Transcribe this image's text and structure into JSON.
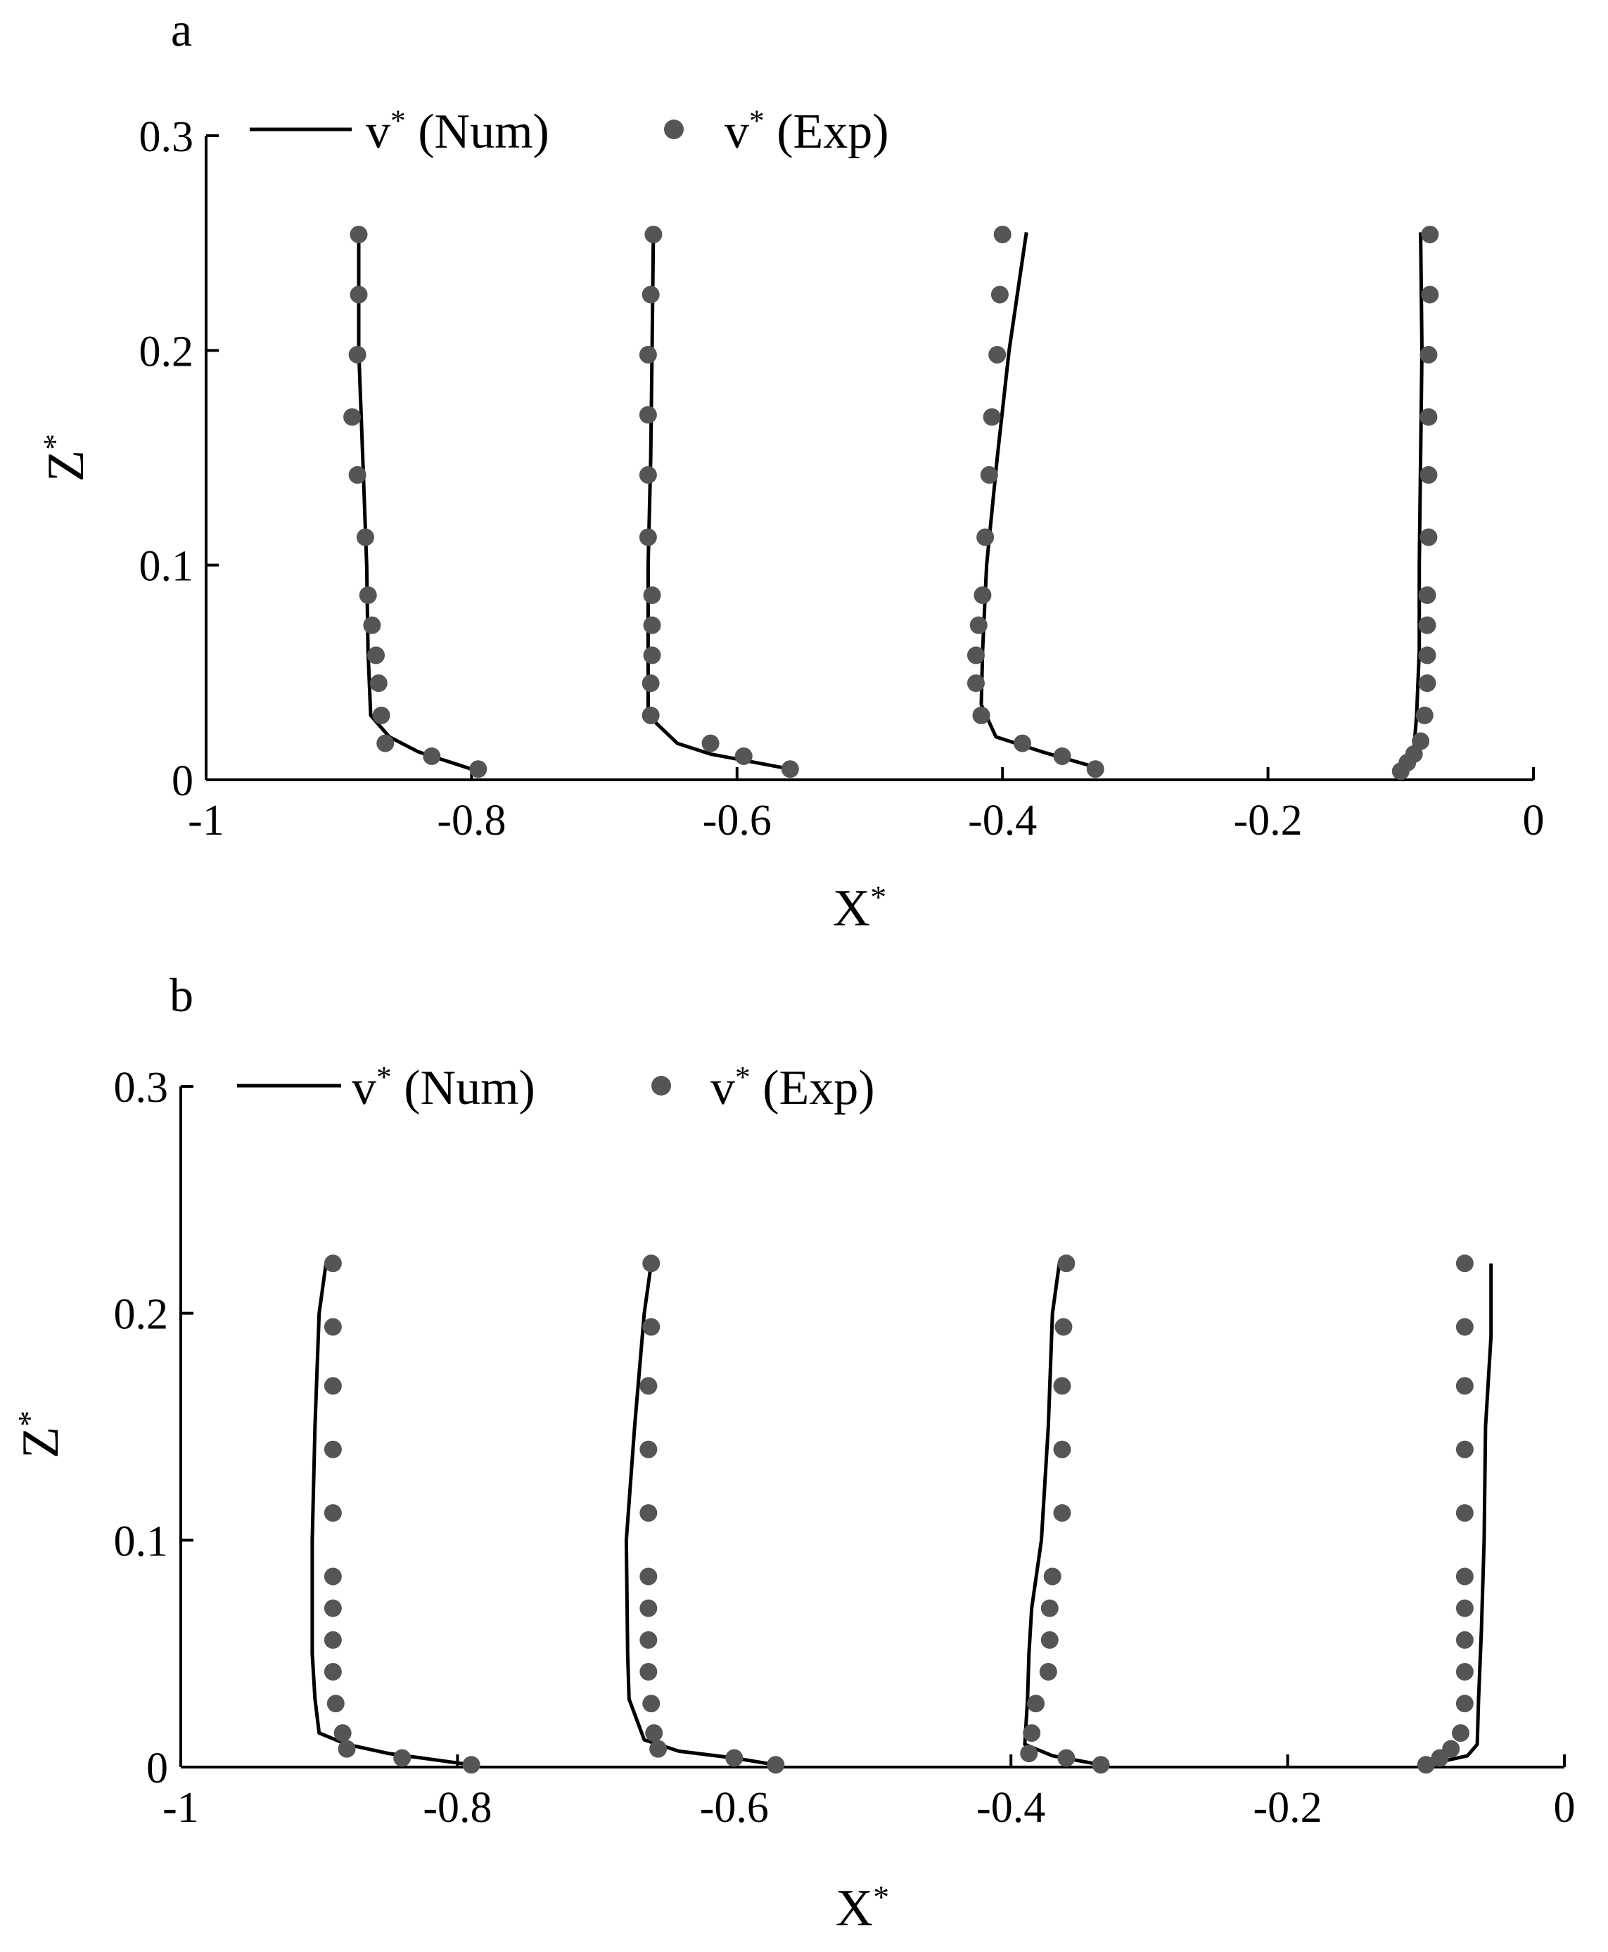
{
  "chart_data": [
    {
      "panel": "a",
      "type": "line",
      "xlabel": "X",
      "xlabel_sup": "*",
      "ylabel": "Z",
      "ylabel_sup": "*",
      "xlim": [
        -1,
        0
      ],
      "ylim": [
        0,
        0.3
      ],
      "xticks": [
        "-1",
        "-0.8",
        "-0.6",
        "-0.4",
        "-0.2",
        "0"
      ],
      "yticks": [
        "0",
        "0.1",
        "0.2",
        "0.3"
      ],
      "grid": false,
      "legend_position": "top",
      "legend": [
        {
          "label": "v",
          "sup": "*",
          "suffix": " (Num)",
          "style": "line"
        },
        {
          "label": "v",
          "sup": "*",
          "suffix": " (Exp)",
          "style": "marker"
        }
      ],
      "series": [
        {
          "name": "v* (Num)",
          "style": "line",
          "profiles": [
            [
              [
                -0.885,
                0.255
              ],
              [
                -0.885,
                0.2
              ],
              [
                -0.882,
                0.15
              ],
              [
                -0.879,
                0.1
              ],
              [
                -0.878,
                0.06
              ],
              [
                -0.876,
                0.03
              ],
              [
                -0.862,
                0.02
              ],
              [
                -0.84,
                0.013
              ],
              [
                -0.8,
                0.005
              ]
            ],
            [
              [
                -0.663,
                0.255
              ],
              [
                -0.664,
                0.2
              ],
              [
                -0.665,
                0.15
              ],
              [
                -0.667,
                0.1
              ],
              [
                -0.667,
                0.06
              ],
              [
                -0.667,
                0.03
              ],
              [
                -0.645,
                0.017
              ],
              [
                -0.62,
                0.012
              ],
              [
                -0.56,
                0.005
              ]
            ],
            [
              [
                -0.382,
                0.255
              ],
              [
                -0.395,
                0.2
              ],
              [
                -0.404,
                0.15
              ],
              [
                -0.412,
                0.1
              ],
              [
                -0.415,
                0.06
              ],
              [
                -0.416,
                0.035
              ],
              [
                -0.405,
                0.02
              ],
              [
                -0.37,
                0.013
              ],
              [
                -0.325,
                0.005
              ]
            ],
            [
              [
                -0.085,
                0.255
              ],
              [
                -0.084,
                0.2
              ],
              [
                -0.085,
                0.15
              ],
              [
                -0.086,
                0.1
              ],
              [
                -0.086,
                0.06
              ],
              [
                -0.088,
                0.03
              ],
              [
                -0.09,
                0.015
              ],
              [
                -0.093,
                0.01
              ],
              [
                -0.1,
                0.005
              ]
            ]
          ]
        },
        {
          "name": "v* (Exp)",
          "style": "marker",
          "profiles": [
            [
              [
                -0.885,
                0.254
              ],
              [
                -0.885,
                0.226
              ],
              [
                -0.886,
                0.198
              ],
              [
                -0.89,
                0.169
              ],
              [
                -0.886,
                0.142
              ],
              [
                -0.88,
                0.113
              ],
              [
                -0.878,
                0.086
              ],
              [
                -0.875,
                0.072
              ],
              [
                -0.872,
                0.058
              ],
              [
                -0.87,
                0.045
              ],
              [
                -0.868,
                0.03
              ],
              [
                -0.865,
                0.017
              ],
              [
                -0.83,
                0.011
              ],
              [
                -0.795,
                0.005
              ]
            ],
            [
              [
                -0.663,
                0.254
              ],
              [
                -0.665,
                0.226
              ],
              [
                -0.667,
                0.198
              ],
              [
                -0.667,
                0.17
              ],
              [
                -0.667,
                0.142
              ],
              [
                -0.667,
                0.113
              ],
              [
                -0.664,
                0.086
              ],
              [
                -0.664,
                0.072
              ],
              [
                -0.664,
                0.058
              ],
              [
                -0.665,
                0.045
              ],
              [
                -0.665,
                0.03
              ],
              [
                -0.62,
                0.017
              ],
              [
                -0.595,
                0.011
              ],
              [
                -0.56,
                0.005
              ]
            ],
            [
              [
                -0.4,
                0.254
              ],
              [
                -0.402,
                0.226
              ],
              [
                -0.404,
                0.198
              ],
              [
                -0.408,
                0.169
              ],
              [
                -0.41,
                0.142
              ],
              [
                -0.413,
                0.113
              ],
              [
                -0.415,
                0.086
              ],
              [
                -0.418,
                0.072
              ],
              [
                -0.42,
                0.058
              ],
              [
                -0.42,
                0.045
              ],
              [
                -0.416,
                0.03
              ],
              [
                -0.385,
                0.017
              ],
              [
                -0.355,
                0.011
              ],
              [
                -0.33,
                0.005
              ]
            ],
            [
              [
                -0.078,
                0.254
              ],
              [
                -0.078,
                0.226
              ],
              [
                -0.079,
                0.198
              ],
              [
                -0.079,
                0.169
              ],
              [
                -0.079,
                0.142
              ],
              [
                -0.079,
                0.113
              ],
              [
                -0.08,
                0.086
              ],
              [
                -0.08,
                0.072
              ],
              [
                -0.08,
                0.058
              ],
              [
                -0.08,
                0.045
              ],
              [
                -0.082,
                0.03
              ],
              [
                -0.085,
                0.018
              ],
              [
                -0.09,
                0.012
              ],
              [
                -0.095,
                0.008
              ],
              [
                -0.1,
                0.004
              ]
            ]
          ]
        }
      ]
    },
    {
      "panel": "b",
      "type": "line",
      "xlabel": "X",
      "xlabel_sup": "*",
      "ylabel": "Z",
      "ylabel_sup": "*",
      "xlim": [
        -1,
        0
      ],
      "ylim": [
        0,
        0.3
      ],
      "xticks": [
        "-1",
        "-0.8",
        "-0.6",
        "-0.4",
        "-0.2",
        "0"
      ],
      "yticks": [
        "0",
        "0.1",
        "0.2",
        "0.3"
      ],
      "grid": false,
      "legend_position": "top",
      "legend": [
        {
          "label": "v",
          "sup": "*",
          "suffix": " (Num)",
          "style": "line"
        },
        {
          "label": "v",
          "sup": "*",
          "suffix": " (Exp)",
          "style": "marker"
        }
      ],
      "series": [
        {
          "name": "v* (Num)",
          "style": "line",
          "profiles": [
            [
              [
                -0.895,
                0.222
              ],
              [
                -0.9,
                0.2
              ],
              [
                -0.903,
                0.15
              ],
              [
                -0.905,
                0.1
              ],
              [
                -0.905,
                0.05
              ],
              [
                -0.903,
                0.03
              ],
              [
                -0.9,
                0.015
              ],
              [
                -0.88,
                0.01
              ],
              [
                -0.85,
                0.006
              ],
              [
                -0.79,
                0.001
              ]
            ],
            [
              [
                -0.66,
                0.222
              ],
              [
                -0.665,
                0.2
              ],
              [
                -0.672,
                0.15
              ],
              [
                -0.678,
                0.1
              ],
              [
                -0.677,
                0.05
              ],
              [
                -0.676,
                0.03
              ],
              [
                -0.665,
                0.012
              ],
              [
                -0.64,
                0.007
              ],
              [
                -0.6,
                0.004
              ],
              [
                -0.57,
                0.001
              ]
            ],
            [
              [
                -0.365,
                0.222
              ],
              [
                -0.37,
                0.2
              ],
              [
                -0.373,
                0.15
              ],
              [
                -0.378,
                0.1
              ],
              [
                -0.385,
                0.07
              ],
              [
                -0.387,
                0.05
              ],
              [
                -0.388,
                0.03
              ],
              [
                -0.39,
                0.01
              ],
              [
                -0.37,
                0.005
              ],
              [
                -0.335,
                0.001
              ]
            ],
            [
              [
                -0.053,
                0.222
              ],
              [
                -0.053,
                0.19
              ],
              [
                -0.057,
                0.15
              ],
              [
                -0.058,
                0.1
              ],
              [
                -0.06,
                0.06
              ],
              [
                -0.062,
                0.03
              ],
              [
                -0.063,
                0.01
              ],
              [
                -0.07,
                0.005
              ],
              [
                -0.1,
                0.001
              ]
            ]
          ]
        },
        {
          "name": "v* (Exp)",
          "style": "marker",
          "profiles": [
            [
              [
                -0.89,
                0.222
              ],
              [
                -0.89,
                0.194
              ],
              [
                -0.89,
                0.168
              ],
              [
                -0.89,
                0.14
              ],
              [
                -0.89,
                0.112
              ],
              [
                -0.89,
                0.084
              ],
              [
                -0.89,
                0.07
              ],
              [
                -0.89,
                0.056
              ],
              [
                -0.89,
                0.042
              ],
              [
                -0.888,
                0.028
              ],
              [
                -0.883,
                0.015
              ],
              [
                -0.88,
                0.008
              ],
              [
                -0.84,
                0.004
              ],
              [
                -0.79,
                0.001
              ]
            ],
            [
              [
                -0.66,
                0.222
              ],
              [
                -0.66,
                0.194
              ],
              [
                -0.662,
                0.168
              ],
              [
                -0.662,
                0.14
              ],
              [
                -0.662,
                0.112
              ],
              [
                -0.662,
                0.084
              ],
              [
                -0.662,
                0.07
              ],
              [
                -0.662,
                0.056
              ],
              [
                -0.662,
                0.042
              ],
              [
                -0.66,
                0.028
              ],
              [
                -0.658,
                0.015
              ],
              [
                -0.655,
                0.008
              ],
              [
                -0.6,
                0.004
              ],
              [
                -0.57,
                0.001
              ]
            ],
            [
              [
                -0.36,
                0.222
              ],
              [
                -0.362,
                0.194
              ],
              [
                -0.363,
                0.168
              ],
              [
                -0.363,
                0.14
              ],
              [
                -0.363,
                0.112
              ],
              [
                -0.37,
                0.084
              ],
              [
                -0.372,
                0.07
              ],
              [
                -0.372,
                0.056
              ],
              [
                -0.373,
                0.042
              ],
              [
                -0.382,
                0.028
              ],
              [
                -0.385,
                0.015
              ],
              [
                -0.387,
                0.006
              ],
              [
                -0.36,
                0.004
              ],
              [
                -0.335,
                0.001
              ]
            ],
            [
              [
                -0.072,
                0.222
              ],
              [
                -0.072,
                0.194
              ],
              [
                -0.072,
                0.168
              ],
              [
                -0.072,
                0.14
              ],
              [
                -0.072,
                0.112
              ],
              [
                -0.072,
                0.084
              ],
              [
                -0.072,
                0.07
              ],
              [
                -0.072,
                0.056
              ],
              [
                -0.072,
                0.042
              ],
              [
                -0.072,
                0.028
              ],
              [
                -0.075,
                0.015
              ],
              [
                -0.082,
                0.008
              ],
              [
                -0.09,
                0.004
              ],
              [
                -0.1,
                0.001
              ]
            ]
          ]
        }
      ]
    }
  ]
}
